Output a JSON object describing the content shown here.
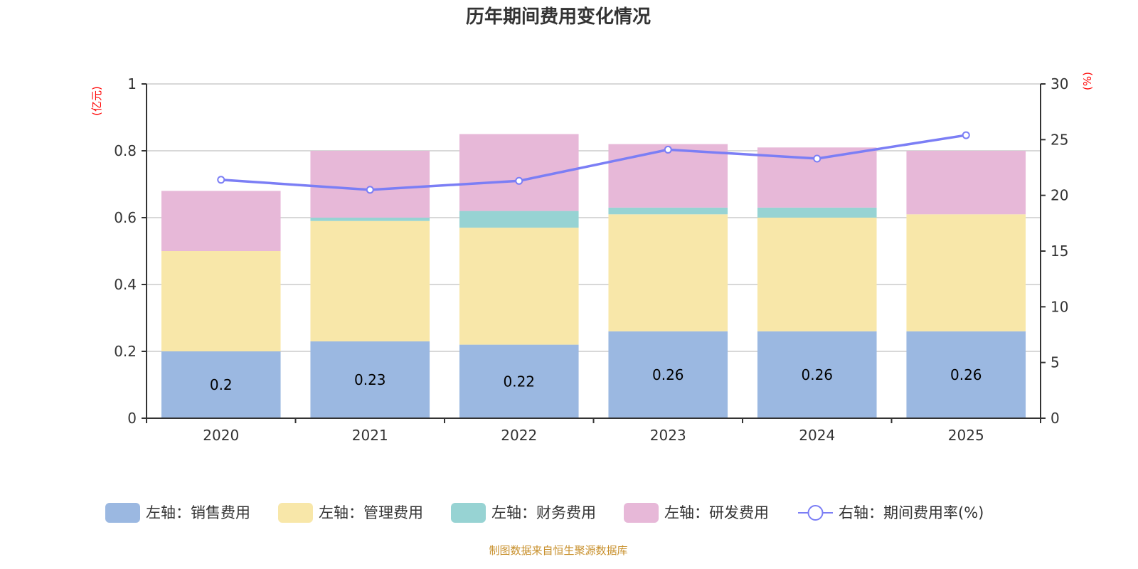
{
  "chart_data": {
    "type": "bar",
    "stacked": true,
    "title": "历年期间费用变化情况",
    "categories": [
      "2020",
      "2021",
      "2022",
      "2023",
      "2024",
      "2025"
    ],
    "left_axis": {
      "unit_label": "(亿元)",
      "ylim": [
        0,
        1
      ],
      "ticks": [
        "0",
        "0.2",
        "0.4",
        "0.6",
        "0.8",
        "1"
      ],
      "tick_values": [
        0,
        0.2,
        0.4,
        0.6,
        0.8,
        1
      ]
    },
    "right_axis": {
      "unit_label": "(%)",
      "ylim": [
        0,
        30
      ],
      "ticks": [
        "0",
        "5",
        "10",
        "15",
        "20",
        "25",
        "30"
      ],
      "tick_values": [
        0,
        5,
        10,
        15,
        20,
        25,
        30
      ]
    },
    "grid": true,
    "legend_position": "bottom",
    "series": [
      {
        "name": "左轴：销售费用",
        "type": "bar",
        "axis": "left",
        "color": "#9bb8e1",
        "values": [
          0.2,
          0.23,
          0.22,
          0.26,
          0.26,
          0.26
        ],
        "show_labels": true
      },
      {
        "name": "左轴：管理费用",
        "type": "bar",
        "axis": "left",
        "color": "#f8e7a9",
        "values": [
          0.3,
          0.36,
          0.35,
          0.35,
          0.34,
          0.35
        ],
        "show_labels": false
      },
      {
        "name": "左轴：财务费用",
        "type": "bar",
        "axis": "left",
        "color": "#97d3d3",
        "values": [
          0.0,
          0.01,
          0.05,
          0.02,
          0.03,
          0.0
        ],
        "show_labels": false
      },
      {
        "name": "左轴：研发费用",
        "type": "bar",
        "axis": "left",
        "color": "#e7b8d8",
        "values": [
          0.18,
          0.2,
          0.23,
          0.19,
          0.18,
          0.19
        ],
        "show_labels": false
      },
      {
        "name": "右轴：期间费用率(%)",
        "type": "line",
        "axis": "right",
        "color": "#7b7ef5",
        "values": [
          21.4,
          20.5,
          21.3,
          24.1,
          23.3,
          25.4
        ],
        "show_labels": false
      }
    ],
    "source_note": "制图数据来自恒生聚源数据库"
  }
}
